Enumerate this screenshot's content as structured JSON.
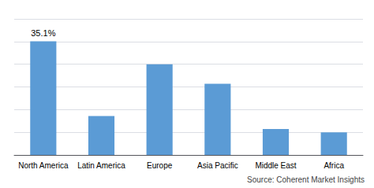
{
  "chart_data": {
    "type": "bar",
    "categories": [
      "North America",
      "Latin America",
      "Europe",
      "Asia Pacific",
      "Middle East",
      "Africa"
    ],
    "values": [
      35.1,
      12.0,
      28.0,
      22.0,
      8.0,
      7.0
    ],
    "color": "#5B9BD5",
    "ylim": [
      0,
      42
    ],
    "yticks": [
      0,
      7,
      14,
      21,
      28,
      35,
      42
    ],
    "grid": true,
    "tick_labels": "x",
    "annotations": [
      {
        "text": "35.1%",
        "category": "North America",
        "value": 35.1
      },
      {
        "text": "Source: Coherent Market Insights"
      }
    ]
  }
}
